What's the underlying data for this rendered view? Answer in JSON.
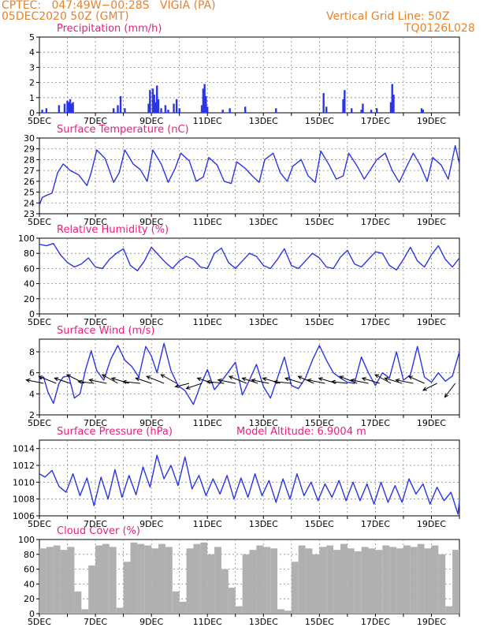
{
  "header": {
    "line1": "CPTEC:   047:49W−00:28S   VIGIA (PA)",
    "line2": "05DEC2020 50Z (GMT)",
    "grid_note": "Vertical Grid Line: 50Z",
    "code": "TQ0126L028"
  },
  "colors": {
    "header": "#e8822a",
    "title": "#e8207a",
    "line": "#2a35e6",
    "cloud": "#b0b0b0"
  },
  "chart_data": [
    {
      "type": "bar",
      "title": "Precipitation (mm/h)",
      "ylim": [
        0,
        5
      ],
      "yticks": [
        "0",
        "1",
        "2",
        "3",
        "4",
        "5"
      ],
      "xticks": [
        "5DEC",
        "7DEC",
        "9DEC",
        "11DEC",
        "13DEC",
        "15DEC",
        "17DEC",
        "19DEC"
      ],
      "x_start": 5,
      "x_end": 20,
      "x": [
        5.1,
        5.25,
        5.7,
        5.9,
        6.0,
        6.05,
        6.1,
        6.15,
        6.2,
        7.65,
        7.8,
        7.9,
        8.05,
        8.9,
        8.95,
        9.05,
        9.1,
        9.15,
        9.2,
        9.25,
        9.35,
        9.5,
        9.6,
        9.8,
        9.9,
        10.0,
        10.8,
        10.85,
        10.9,
        10.95,
        11.0,
        11.55,
        11.8,
        12.35,
        13.45,
        15.15,
        15.25,
        15.85,
        15.9,
        16.15,
        16.5,
        16.55,
        16.85,
        17.05,
        17.55,
        17.6,
        17.65,
        18.65,
        18.7
      ],
      "values": [
        0.2,
        0.3,
        0.5,
        0.6,
        0.8,
        0.7,
        0.9,
        0.6,
        0.7,
        0.3,
        0.5,
        1.1,
        0.3,
        0.6,
        1.5,
        1.6,
        1.2,
        0.7,
        1.8,
        0.9,
        0.3,
        0.5,
        0.2,
        0.6,
        0.9,
        0.3,
        0.5,
        1.6,
        1.9,
        1.1,
        0.4,
        0.2,
        0.3,
        0.4,
        0.3,
        1.3,
        0.4,
        0.9,
        1.5,
        0.3,
        0.2,
        0.6,
        0.2,
        0.3,
        0.7,
        1.9,
        1.2,
        0.3,
        0.2
      ]
    },
    {
      "type": "line",
      "title": "Surface Temperature (nC)",
      "ylim": [
        23,
        30
      ],
      "yticks": [
        "23",
        "24",
        "25",
        "26",
        "27",
        "28",
        "29",
        "30"
      ],
      "xticks": [
        "5DEC",
        "7DEC",
        "9DEC",
        "11DEC",
        "13DEC",
        "15DEC",
        "17DEC",
        "19DEC"
      ],
      "x_start": 5,
      "x_end": 20,
      "x": [
        5.0,
        5.1,
        5.25,
        5.45,
        5.65,
        5.85,
        6.1,
        6.4,
        6.7,
        6.85,
        7.05,
        7.35,
        7.65,
        7.85,
        8.05,
        8.35,
        8.6,
        8.85,
        9.05,
        9.35,
        9.6,
        9.85,
        10.05,
        10.35,
        10.6,
        10.85,
        11.05,
        11.35,
        11.6,
        11.85,
        12.05,
        12.35,
        12.6,
        12.85,
        13.05,
        13.35,
        13.6,
        13.85,
        14.05,
        14.35,
        14.6,
        14.85,
        15.05,
        15.35,
        15.6,
        15.85,
        16.05,
        16.35,
        16.6,
        16.85,
        17.05,
        17.35,
        17.6,
        17.85,
        18.05,
        18.35,
        18.6,
        18.85,
        19.05,
        19.35,
        19.6,
        19.85,
        20.0
      ],
      "values": [
        23.8,
        24.5,
        24.7,
        24.9,
        26.8,
        27.6,
        27.0,
        26.6,
        25.6,
        26.8,
        28.9,
        28.1,
        25.9,
        26.8,
        28.9,
        27.6,
        27.1,
        26.0,
        28.9,
        27.6,
        25.9,
        27.2,
        28.6,
        27.9,
        26.0,
        26.4,
        28.2,
        27.5,
        26.0,
        25.8,
        27.8,
        27.2,
        26.5,
        25.9,
        28.0,
        28.6,
        26.8,
        26.0,
        27.4,
        28.0,
        26.5,
        25.9,
        28.8,
        27.5,
        26.2,
        26.5,
        28.6,
        27.4,
        26.2,
        27.2,
        28.0,
        28.6,
        27.0,
        25.9,
        27.0,
        28.6,
        27.5,
        26.0,
        28.2,
        27.5,
        26.2,
        29.3,
        27.6
      ]
    },
    {
      "type": "line",
      "title": "Relative Humidity (%)",
      "ylim": [
        0,
        100
      ],
      "yticks": [
        "0",
        "20",
        "40",
        "60",
        "80",
        "100"
      ],
      "xticks": [
        "5DEC",
        "7DEC",
        "9DEC",
        "11DEC",
        "13DEC",
        "15DEC",
        "17DEC",
        "19DEC"
      ],
      "x_start": 5,
      "x_end": 20,
      "x": [
        5.0,
        5.25,
        5.5,
        5.75,
        6.0,
        6.25,
        6.5,
        6.75,
        7.0,
        7.25,
        7.5,
        7.75,
        8.0,
        8.25,
        8.5,
        8.75,
        9.0,
        9.25,
        9.5,
        9.75,
        10.0,
        10.25,
        10.5,
        10.75,
        11.0,
        11.25,
        11.5,
        11.75,
        12.0,
        12.25,
        12.5,
        12.75,
        13.0,
        13.25,
        13.5,
        13.75,
        14.0,
        14.25,
        14.5,
        14.75,
        15.0,
        15.25,
        15.5,
        15.75,
        16.0,
        16.25,
        16.5,
        16.75,
        17.0,
        17.25,
        17.5,
        17.75,
        18.0,
        18.25,
        18.5,
        18.75,
        19.0,
        19.25,
        19.5,
        19.75,
        20.0
      ],
      "values": [
        92,
        90,
        93,
        78,
        68,
        62,
        66,
        74,
        62,
        60,
        72,
        80,
        86,
        64,
        57,
        70,
        88,
        78,
        68,
        60,
        70,
        76,
        72,
        62,
        60,
        80,
        87,
        68,
        60,
        70,
        80,
        76,
        64,
        60,
        72,
        86,
        64,
        60,
        70,
        80,
        74,
        62,
        60,
        75,
        84,
        66,
        62,
        72,
        82,
        80,
        64,
        58,
        72,
        88,
        70,
        62,
        78,
        90,
        72,
        62,
        74
      ]
    },
    {
      "type": "line",
      "title": "Surface Wind (m/s)",
      "ylim": [
        2,
        9.2
      ],
      "yticks": [
        "2",
        "4",
        "6",
        "8"
      ],
      "xticks": [
        "5DEC",
        "7DEC",
        "9DEC",
        "11DEC",
        "13DEC",
        "15DEC",
        "17DEC",
        "19DEC"
      ],
      "x_start": 5,
      "x_end": 20,
      "x": [
        5.0,
        5.15,
        5.3,
        5.5,
        5.7,
        5.85,
        6.05,
        6.25,
        6.45,
        6.65,
        6.85,
        7.05,
        7.3,
        7.55,
        7.8,
        8.05,
        8.3,
        8.55,
        8.8,
        9.0,
        9.2,
        9.45,
        9.7,
        9.95,
        10.2,
        10.5,
        10.75,
        11.0,
        11.25,
        11.5,
        11.75,
        12.0,
        12.25,
        12.5,
        12.75,
        13.0,
        13.25,
        13.5,
        13.75,
        14.0,
        14.25,
        14.5,
        14.75,
        15.0,
        15.25,
        15.5,
        15.75,
        16.0,
        16.25,
        16.5,
        16.75,
        17.0,
        17.25,
        17.5,
        17.75,
        18.0,
        18.25,
        18.5,
        18.75,
        19.0,
        19.25,
        19.5,
        19.75,
        20.0
      ],
      "values": [
        5.4,
        5.6,
        4.2,
        3.1,
        5.0,
        5.6,
        5.7,
        3.6,
        4.0,
        6.3,
        8.1,
        6.2,
        5.3,
        7.3,
        8.6,
        7.2,
        6.6,
        5.6,
        8.5,
        7.6,
        6.0,
        8.8,
        6.2,
        4.8,
        4.3,
        3.0,
        4.8,
        6.3,
        4.4,
        5.2,
        6.1,
        7.0,
        3.9,
        5.3,
        6.8,
        4.7,
        3.6,
        5.5,
        7.5,
        4.8,
        4.5,
        5.5,
        7.2,
        8.6,
        7.2,
        6.0,
        5.5,
        5.1,
        5.0,
        7.5,
        6.0,
        4.8,
        6.0,
        5.5,
        8.0,
        5.3,
        5.8,
        8.5,
        5.6,
        5.1,
        6.0,
        5.2,
        5.7,
        8.0
      ]
    },
    {
      "type": "line",
      "title": "Surface Pressure (hPa)",
      "annotation": "Model Altitude: 6.9004 m",
      "ylim": [
        1006,
        1015
      ],
      "yticks": [
        "1006",
        "1008",
        "1010",
        "1012",
        "1014"
      ],
      "xticks": [
        "5DEC",
        "7DEC",
        "9DEC",
        "11DEC",
        "13DEC",
        "15DEC",
        "17DEC",
        "19DEC"
      ],
      "x_start": 5,
      "x_end": 20,
      "x": [
        5.0,
        5.2,
        5.45,
        5.7,
        5.95,
        6.2,
        6.45,
        6.7,
        6.95,
        7.2,
        7.45,
        7.7,
        7.95,
        8.2,
        8.45,
        8.7,
        8.95,
        9.2,
        9.45,
        9.7,
        9.95,
        10.2,
        10.45,
        10.7,
        10.95,
        11.2,
        11.45,
        11.7,
        11.95,
        12.2,
        12.45,
        12.7,
        12.95,
        13.2,
        13.45,
        13.7,
        13.95,
        14.2,
        14.45,
        14.7,
        14.95,
        15.2,
        15.45,
        15.7,
        15.95,
        16.2,
        16.45,
        16.7,
        16.95,
        17.2,
        17.45,
        17.7,
        17.95,
        18.2,
        18.45,
        18.7,
        18.95,
        19.2,
        19.45,
        19.7,
        19.95,
        20.0
      ],
      "values": [
        1011.0,
        1010.6,
        1011.4,
        1009.5,
        1008.8,
        1011.0,
        1008.4,
        1010.5,
        1007.2,
        1010.6,
        1008.0,
        1011.5,
        1008.2,
        1010.8,
        1008.5,
        1011.8,
        1009.4,
        1013.2,
        1010.4,
        1012.0,
        1009.6,
        1013.0,
        1009.2,
        1010.8,
        1008.4,
        1010.4,
        1008.6,
        1010.8,
        1008.0,
        1010.5,
        1008.2,
        1011.0,
        1008.4,
        1010.2,
        1007.6,
        1010.4,
        1008.0,
        1011.0,
        1008.4,
        1010.0,
        1007.8,
        1009.8,
        1008.2,
        1010.2,
        1007.8,
        1010.0,
        1007.8,
        1009.8,
        1007.4,
        1010.0,
        1007.6,
        1009.6,
        1007.6,
        1010.4,
        1008.6,
        1009.8,
        1007.4,
        1009.4,
        1007.8,
        1008.8,
        1006.2,
        1007.8
      ]
    },
    {
      "type": "bar",
      "title": "Cloud Cover (%)",
      "ylim": [
        0,
        100
      ],
      "yticks": [
        "0",
        "20",
        "40",
        "60",
        "80",
        "100"
      ],
      "xticks": [
        "5DEC",
        "7DEC",
        "9DEC",
        "11DEC",
        "13DEC",
        "15DEC",
        "17DEC",
        "19DEC"
      ],
      "x_start": 5,
      "x_end": 20,
      "x": [
        5.0,
        5.25,
        5.5,
        5.75,
        6.0,
        6.25,
        6.5,
        6.75,
        7.0,
        7.25,
        7.5,
        7.75,
        8.0,
        8.25,
        8.5,
        8.75,
        9.0,
        9.25,
        9.5,
        9.75,
        10.0,
        10.25,
        10.5,
        10.75,
        11.0,
        11.25,
        11.5,
        11.75,
        12.0,
        12.25,
        12.5,
        12.75,
        13.0,
        13.25,
        13.5,
        13.75,
        14.0,
        14.25,
        14.5,
        14.75,
        15.0,
        15.25,
        15.5,
        15.75,
        16.0,
        16.25,
        16.5,
        16.75,
        17.0,
        17.25,
        17.5,
        17.75,
        18.0,
        18.25,
        18.5,
        18.75,
        19.0,
        19.25,
        19.5,
        19.75
      ],
      "values": [
        88,
        90,
        92,
        86,
        90,
        30,
        6,
        65,
        92,
        94,
        90,
        8,
        70,
        96,
        94,
        92,
        88,
        94,
        90,
        30,
        16,
        88,
        94,
        96,
        80,
        90,
        60,
        35,
        10,
        80,
        86,
        92,
        90,
        88,
        6,
        4,
        70,
        92,
        88,
        80,
        90,
        92,
        86,
        94,
        88,
        84,
        90,
        88,
        86,
        92,
        90,
        88,
        92,
        90,
        94,
        88,
        92,
        80,
        10,
        86
      ]
    }
  ],
  "wind_vectors": [
    {
      "day": 5.15,
      "u": -1,
      "v": 0.2
    },
    {
      "day": 5.6,
      "u": -1,
      "v": 0.4
    },
    {
      "day": 6.1,
      "u": -0.9,
      "v": 0.3
    },
    {
      "day": 6.6,
      "u": -1,
      "v": 0.5
    },
    {
      "day": 6.95,
      "u": -0.9,
      "v": 0.1
    },
    {
      "day": 7.4,
      "u": -1,
      "v": 0.2
    },
    {
      "day": 7.8,
      "u": -0.9,
      "v": 0.5
    },
    {
      "day": 8.2,
      "u": -1,
      "v": 0.3
    },
    {
      "day": 8.6,
      "u": -1,
      "v": 0.1
    },
    {
      "day": 9.0,
      "u": -0.9,
      "v": 0.3
    },
    {
      "day": 9.45,
      "u": -1,
      "v": 0.4
    },
    {
      "day": 9.9,
      "u": -0.9,
      "v": 0.5
    },
    {
      "day": 10.35,
      "u": -0.8,
      "v": -0.2
    },
    {
      "day": 10.8,
      "u": -0.9,
      "v": -0.3
    },
    {
      "day": 11.2,
      "u": -0.9,
      "v": 0.3
    },
    {
      "day": 11.6,
      "u": -1,
      "v": 0.1
    },
    {
      "day": 12.0,
      "u": -1,
      "v": 0.2
    },
    {
      "day": 12.4,
      "u": -1,
      "v": 0.4
    },
    {
      "day": 12.8,
      "u": -0.9,
      "v": 0.3
    },
    {
      "day": 13.2,
      "u": -1,
      "v": 0.2
    },
    {
      "day": 13.6,
      "u": -1,
      "v": 0.3
    },
    {
      "day": 14.0,
      "u": -1,
      "v": 0.1
    },
    {
      "day": 14.4,
      "u": -1,
      "v": 0.3
    },
    {
      "day": 14.8,
      "u": -0.9,
      "v": 0.4
    },
    {
      "day": 15.2,
      "u": -1,
      "v": 0.2
    },
    {
      "day": 15.6,
      "u": -1,
      "v": 0.3
    },
    {
      "day": 16.0,
      "u": -0.9,
      "v": 0.1
    },
    {
      "day": 16.35,
      "u": -1,
      "v": 0.4
    },
    {
      "day": 16.75,
      "u": -1,
      "v": 0.2
    },
    {
      "day": 17.15,
      "u": -1,
      "v": 0.3
    },
    {
      "day": 17.55,
      "u": -0.9,
      "v": 0.5
    },
    {
      "day": 17.95,
      "u": -1,
      "v": 0.3
    },
    {
      "day": 18.35,
      "u": -1,
      "v": 0.2
    },
    {
      "day": 18.75,
      "u": -0.9,
      "v": 0.4
    },
    {
      "day": 19.2,
      "u": -0.8,
      "v": -0.4
    },
    {
      "day": 19.85,
      "u": -0.6,
      "v": -0.8
    }
  ]
}
